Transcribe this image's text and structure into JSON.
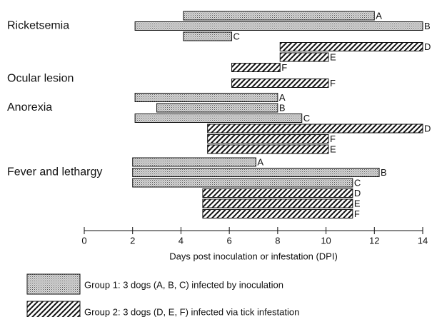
{
  "chart_data": {
    "type": "range-bar",
    "xlabel": "Days post inoculation or infestation (DPI)",
    "xlim": [
      0,
      14
    ],
    "xticks": [
      0,
      2,
      4,
      6,
      8,
      10,
      12,
      14
    ],
    "categories": [
      {
        "name": "Ricketsemia",
        "bars": [
          {
            "label": "A",
            "start": 4.1,
            "end": 12,
            "pattern": "dots"
          },
          {
            "label": "B",
            "start": 2.1,
            "end": 14,
            "pattern": "dots"
          },
          {
            "label": "C",
            "start": 4.1,
            "end": 6.1,
            "pattern": "dots"
          },
          {
            "label": "D",
            "start": 8.1,
            "end": 14,
            "pattern": "hatch"
          },
          {
            "label": "E",
            "start": 8.1,
            "end": 10.1,
            "pattern": "hatch"
          },
          {
            "label": "F",
            "start": 6.1,
            "end": 8.1,
            "pattern": "hatch"
          }
        ]
      },
      {
        "name": "Ocular lesion",
        "bars": [
          {
            "label": "F",
            "start": 6.1,
            "end": 10.1,
            "pattern": "hatch"
          }
        ]
      },
      {
        "name": "Anorexia",
        "bars": [
          {
            "label": "A",
            "start": 2.1,
            "end": 8,
            "pattern": "dots"
          },
          {
            "label": "B",
            "start": 3,
            "end": 8,
            "pattern": "dots"
          },
          {
            "label": "C",
            "start": 2.1,
            "end": 9,
            "pattern": "dots"
          },
          {
            "label": "D",
            "start": 5.1,
            "end": 14,
            "pattern": "hatch"
          },
          {
            "label": "F",
            "start": 5.1,
            "end": 10.1,
            "pattern": "hatch"
          },
          {
            "label": "E",
            "start": 5.1,
            "end": 10.1,
            "pattern": "hatch"
          }
        ]
      },
      {
        "name": "Fever and lethargy",
        "bars": [
          {
            "label": "A",
            "start": 2,
            "end": 7.1,
            "pattern": "dots"
          },
          {
            "label": "B",
            "start": 2,
            "end": 12.2,
            "pattern": "dots"
          },
          {
            "label": "C",
            "start": 2,
            "end": 11.1,
            "pattern": "dots"
          },
          {
            "label": "D",
            "start": 4.9,
            "end": 11.1,
            "pattern": "hatch"
          },
          {
            "label": "E",
            "start": 4.9,
            "end": 11.1,
            "pattern": "hatch"
          },
          {
            "label": "F",
            "start": 4.9,
            "end": 11.1,
            "pattern": "hatch"
          }
        ]
      }
    ],
    "legend": [
      {
        "name": "Group 1: 3 dogs (A, B, C) infected by inoculation",
        "pattern": "dots"
      },
      {
        "name": "Group 2: 3 dogs (D, E, F) infected via tick infestation",
        "pattern": "hatch"
      }
    ]
  }
}
